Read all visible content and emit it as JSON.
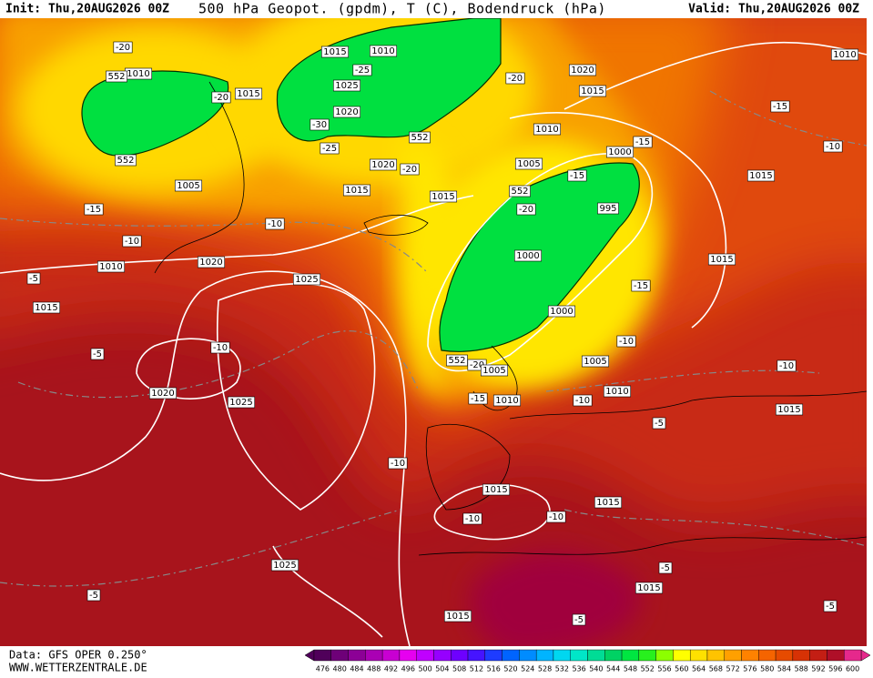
{
  "header": {
    "init": "Init: Thu,20AUG2026 00Z",
    "title": "500 hPa Geopot. (gpdm), T (C), Bodendruck (hPa)",
    "valid": "Valid: Thu,20AUG2026 00Z"
  },
  "contour_labels": [
    "-20",
    "1010",
    "552",
    "-20",
    "1015",
    "552",
    "1005",
    "-15",
    "-10",
    "1010",
    "1020",
    "-5",
    "1015",
    "1025",
    "-5",
    "-10",
    "1020",
    "1025",
    "-10",
    "1025",
    "-5",
    "1015",
    "1010",
    "-25",
    "1025",
    "1020",
    "-30",
    "-25",
    "552",
    "1020",
    "-20",
    "1015",
    "1015",
    "-10",
    "-20",
    "1020",
    "1015",
    "1010",
    "-15",
    "1000",
    "1005",
    "-15",
    "552",
    "-20",
    "995",
    "1000",
    "-15",
    "1000",
    "-10",
    "1005",
    "552",
    "-20",
    "1005",
    "-15",
    "1010",
    "-10",
    "1010",
    "1010",
    "-15",
    "-10",
    "1015",
    "1015",
    "-10",
    "1015",
    "-5",
    "1015",
    "-10",
    "-10",
    "1015",
    "-5",
    "1015",
    "1015",
    "-5",
    "-5"
  ],
  "footer": {
    "data": "Data: GFS OPER 0.250°",
    "site": "WWW.WETTERZENTRALE.DE"
  },
  "colorbar": {
    "levels": [
      476,
      480,
      484,
      488,
      492,
      496,
      500,
      504,
      508,
      512,
      516,
      520,
      524,
      528,
      532,
      536,
      540,
      544,
      548,
      552,
      556,
      560,
      564,
      568,
      572,
      576,
      580,
      584,
      588,
      592,
      596,
      600
    ],
    "colors": [
      "#50005a",
      "#6e0078",
      "#8c0096",
      "#aa00b4",
      "#c800d2",
      "#e600f0",
      "#c000ff",
      "#9600ff",
      "#6e00ff",
      "#4614ff",
      "#1e3cff",
      "#0064ff",
      "#008cff",
      "#00b4ff",
      "#00d7f0",
      "#00e6c8",
      "#00dc96",
      "#00d264",
      "#00e641",
      "#28f01e",
      "#8cff00",
      "#ffff00",
      "#ffe100",
      "#ffc300",
      "#ffa000",
      "#ff8200",
      "#f56400",
      "#e64b00",
      "#d73205",
      "#c31e14",
      "#af0f28",
      "#e6288c"
    ]
  }
}
